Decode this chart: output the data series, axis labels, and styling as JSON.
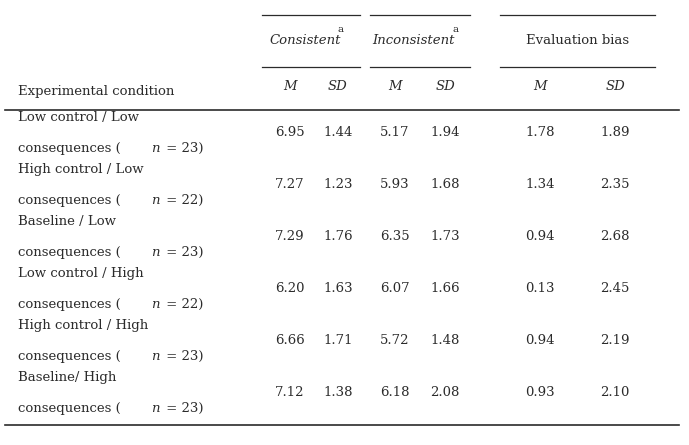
{
  "row_label_header": "Experimental condition",
  "col_group_headers": [
    "Consistent",
    "Inconsistent",
    "Evaluation bias"
  ],
  "col_group_has_superscript": [
    true,
    true,
    false
  ],
  "sub_headers": [
    "M",
    "SD",
    "M",
    "SD",
    "M",
    "SD"
  ],
  "rows": [
    {
      "label_line1": "Low control / Low",
      "label_line2": "consequences (",
      "label_n": "n",
      "label_rest": " = 23)",
      "values": [
        "6.95",
        "1.44",
        "5.17",
        "1.94",
        "1.78",
        "1.89"
      ]
    },
    {
      "label_line1": "High control / Low",
      "label_line2": "consequences (",
      "label_n": "n",
      "label_rest": " = 22)",
      "values": [
        "7.27",
        "1.23",
        "5.93",
        "1.68",
        "1.34",
        "2.35"
      ]
    },
    {
      "label_line1": "Baseline / Low",
      "label_line2": "consequences (",
      "label_n": "n",
      "label_rest": " = 23)",
      "values": [
        "7.29",
        "1.76",
        "6.35",
        "1.73",
        "0.94",
        "2.68"
      ]
    },
    {
      "label_line1": "Low control / High",
      "label_line2": "consequences (",
      "label_n": "n",
      "label_rest": " = 22)",
      "values": [
        "6.20",
        "1.63",
        "6.07",
        "1.66",
        "0.13",
        "2.45"
      ]
    },
    {
      "label_line1": "High control / High",
      "label_line2": "consequences (",
      "label_n": "n",
      "label_rest": " = 23)",
      "values": [
        "6.66",
        "1.71",
        "5.72",
        "1.48",
        "0.94",
        "2.19"
      ]
    },
    {
      "label_line1": "Baseline/ High",
      "label_line2": "consequences (",
      "label_n": "n",
      "label_rest": " = 23)",
      "values": [
        "7.12",
        "1.38",
        "6.18",
        "2.08",
        "0.93",
        "2.10"
      ]
    }
  ],
  "background_color": "#ffffff",
  "text_color": "#2b2b2b",
  "font_size": 9.5,
  "header_font_size": 9.5,
  "fig_width": 6.89,
  "fig_height": 4.45,
  "dpi": 100
}
